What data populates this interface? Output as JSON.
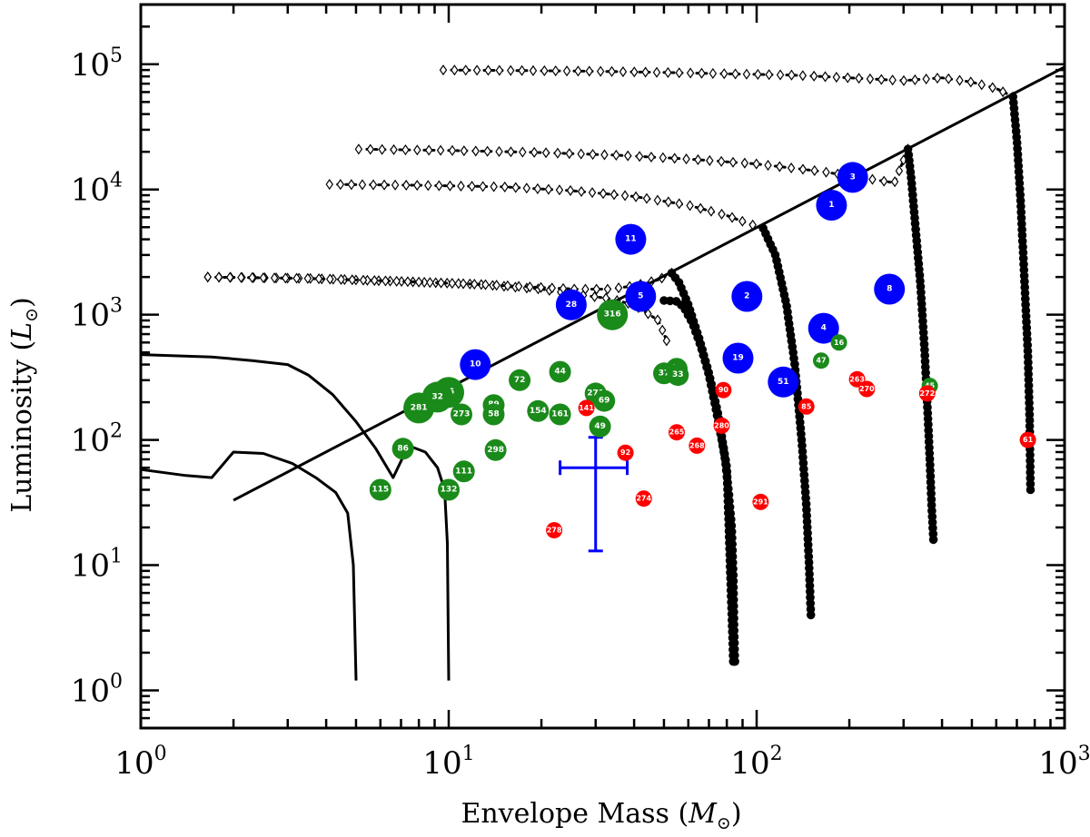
{
  "chart_data": {
    "type": "scatter",
    "title": "",
    "xlabel": "Envelope Mass",
    "xlabel_unit": "M",
    "ylabel": "Luminosity",
    "ylabel_unit": "L",
    "xscale": "log",
    "yscale": "log",
    "xlim": [
      1,
      1000
    ],
    "ylim": [
      0.5,
      300000
    ],
    "x_ticks": [
      {
        "base": "10",
        "exp": "0",
        "value": 1
      },
      {
        "base": "10",
        "exp": "1",
        "value": 10
      },
      {
        "base": "10",
        "exp": "2",
        "value": 100
      },
      {
        "base": "10",
        "exp": "3",
        "value": 1000
      }
    ],
    "y_ticks": [
      {
        "base": "10",
        "exp": "0",
        "value": 1
      },
      {
        "base": "10",
        "exp": "1",
        "value": 10
      },
      {
        "base": "10",
        "exp": "2",
        "value": 100
      },
      {
        "base": "10",
        "exp": "3",
        "value": 1000
      },
      {
        "base": "10",
        "exp": "4",
        "value": 10000
      },
      {
        "base": "10",
        "exp": "5",
        "value": 100000
      }
    ],
    "colors": {
      "blue": "#0000ff",
      "green": "#1a8a1a",
      "red": "#ff0000",
      "line": "#000000",
      "errorbar": "#0000ff"
    },
    "reference_line": {
      "x": [
        2,
        1000
      ],
      "y": [
        33,
        95000
      ]
    },
    "low_mass_tracks": [
      {
        "x": [
          1,
          1.7,
          2.3,
          3.0,
          3.5,
          4.2,
          5.0,
          5.8,
          6.6,
          7.4,
          8.4,
          9.2,
          9.7,
          9.9,
          10.0
        ],
        "y": [
          480,
          460,
          430,
          400,
          330,
          230,
          140,
          85,
          50,
          90,
          80,
          60,
          40,
          15,
          1.2
        ]
      },
      {
        "x": [
          1,
          1.4,
          1.7,
          2.0,
          2.5,
          3.1,
          3.7,
          4.3,
          4.7,
          4.9,
          5.0
        ],
        "y": [
          58,
          52,
          50,
          80,
          78,
          65,
          50,
          38,
          26,
          10,
          1.2
        ]
      }
    ],
    "main_tracks": [
      {
        "diamond": {
          "x": [
            1.65,
            3.5,
            6.8,
            12.5,
            20,
            26,
            33,
            40,
            48,
            51
          ],
          "y": [
            2000,
            1950,
            1850,
            1750,
            1600,
            1450,
            1350,
            1200,
            900,
            620
          ]
        },
        "acc": {
          "x": [
            50,
            55,
            58,
            62,
            66,
            70,
            73,
            76,
            79,
            81,
            83,
            84,
            84.5,
            85
          ],
          "y": [
            1300,
            1280,
            1150,
            850,
            550,
            330,
            200,
            120,
            70,
            40,
            20,
            8,
            3,
            1.7
          ]
        }
      },
      {
        "diamond": {
          "x": [
            1.65,
            3.5,
            6.8,
            12.5,
            20,
            26,
            33,
            40,
            48,
            53
          ],
          "y": [
            2000,
            1950,
            1850,
            1750,
            1650,
            1600,
            1600,
            1700,
            1900,
            2150
          ]
        },
        "acc": {
          "x": [
            53,
            56,
            60,
            65,
            70,
            75,
            80,
            84
          ],
          "y": [
            2150,
            1800,
            1200,
            650,
            340,
            160,
            60,
            1.7
          ]
        }
      },
      {
        "diamond": {
          "x": [
            4.1,
            8,
            15,
            25,
            40,
            60,
            80,
            95,
            105
          ],
          "y": [
            11000,
            10800,
            10500,
            9800,
            8800,
            7500,
            6200,
            5300,
            4900
          ]
        },
        "acc": {
          "x": [
            105,
            115,
            125,
            133,
            140,
            145,
            148,
            150
          ],
          "y": [
            4900,
            3000,
            1200,
            400,
            100,
            30,
            10,
            4
          ]
        }
      },
      {
        "diamond": {
          "x": [
            5.1,
            10,
            19,
            35,
            60,
            100,
            160,
            230,
            280,
            310
          ],
          "y": [
            21000,
            20500,
            19800,
            18800,
            17500,
            16000,
            14000,
            12200,
            11300,
            21000
          ]
        },
        "acc": {
          "x": [
            310,
            318,
            328,
            340,
            350,
            358,
            365,
            370,
            375
          ],
          "y": [
            21000,
            12000,
            5000,
            1800,
            600,
            200,
            70,
            30,
            16
          ]
        }
      },
      {
        "diamond": {
          "x": [
            9.6,
            18,
            30,
            50,
            80,
            130,
            200,
            300,
            400,
            500,
            600,
            680
          ],
          "y": [
            90000,
            89000,
            88000,
            86000,
            84000,
            82000,
            78000,
            74000,
            78000,
            72000,
            64000,
            55000
          ]
        },
        "acc": {
          "x": [
            680,
            700,
            720,
            740,
            760,
            770,
            775
          ],
          "y": [
            55000,
            25000,
            8000,
            2000,
            500,
            150,
            40
          ]
        }
      }
    ],
    "points": [
      {
        "label": "1",
        "x": 175,
        "y": 7500,
        "color": "blue",
        "size": "L"
      },
      {
        "label": "2",
        "x": 93,
        "y": 1400,
        "color": "blue",
        "size": "L"
      },
      {
        "label": "3",
        "x": 205,
        "y": 12500,
        "color": "blue",
        "size": "L"
      },
      {
        "label": "4",
        "x": 165,
        "y": 780,
        "color": "blue",
        "size": "L"
      },
      {
        "label": "5",
        "x": 42,
        "y": 1400,
        "color": "blue",
        "size": "L"
      },
      {
        "label": "8",
        "x": 270,
        "y": 1600,
        "color": "blue",
        "size": "L"
      },
      {
        "label": "10",
        "x": 12.2,
        "y": 400,
        "color": "blue",
        "size": "L"
      },
      {
        "label": "11",
        "x": 39,
        "y": 4000,
        "color": "blue",
        "size": "L"
      },
      {
        "label": "19",
        "x": 87,
        "y": 450,
        "color": "blue",
        "size": "L"
      },
      {
        "label": "28",
        "x": 25,
        "y": 1200,
        "color": "blue",
        "size": "L"
      },
      {
        "label": "51",
        "x": 122,
        "y": 290,
        "color": "blue",
        "size": "L"
      },
      {
        "label": "316",
        "x": 34,
        "y": 1000,
        "color": "green",
        "size": "L"
      },
      {
        "label": "15",
        "x": 10,
        "y": 240,
        "color": "green",
        "size": "L"
      },
      {
        "label": "32",
        "x": 9.2,
        "y": 220,
        "color": "green",
        "size": "L"
      },
      {
        "label": "281",
        "x": 8,
        "y": 180,
        "color": "green",
        "size": "L"
      },
      {
        "label": "273",
        "x": 11,
        "y": 160,
        "color": "green",
        "size": "M"
      },
      {
        "label": "86",
        "x": 7.1,
        "y": 85,
        "color": "green",
        "size": "M"
      },
      {
        "label": "115",
        "x": 6,
        "y": 40,
        "color": "green",
        "size": "M"
      },
      {
        "label": "111",
        "x": 11.2,
        "y": 56,
        "color": "green",
        "size": "M"
      },
      {
        "label": "132",
        "x": 10,
        "y": 40,
        "color": "green",
        "size": "M"
      },
      {
        "label": "89",
        "x": 14,
        "y": 190,
        "color": "green",
        "size": "M"
      },
      {
        "label": "58",
        "x": 14,
        "y": 160,
        "color": "green",
        "size": "M"
      },
      {
        "label": "298",
        "x": 14.2,
        "y": 83,
        "color": "green",
        "size": "M"
      },
      {
        "label": "72",
        "x": 17,
        "y": 300,
        "color": "green",
        "size": "M"
      },
      {
        "label": "154",
        "x": 19.5,
        "y": 170,
        "color": "green",
        "size": "M"
      },
      {
        "label": "44",
        "x": 23,
        "y": 350,
        "color": "green",
        "size": "M"
      },
      {
        "label": "161",
        "x": 23,
        "y": 160,
        "color": "green",
        "size": "M"
      },
      {
        "label": "271",
        "x": 30,
        "y": 235,
        "color": "green",
        "size": "M"
      },
      {
        "label": "69",
        "x": 32,
        "y": 205,
        "color": "green",
        "size": "M"
      },
      {
        "label": "49",
        "x": 31,
        "y": 128,
        "color": "green",
        "size": "M"
      },
      {
        "label": "37",
        "x": 50,
        "y": 340,
        "color": "green",
        "size": "M"
      },
      {
        "label": "42",
        "x": 55,
        "y": 370,
        "color": "green",
        "size": "M"
      },
      {
        "label": "33",
        "x": 55.5,
        "y": 330,
        "color": "green",
        "size": "M"
      },
      {
        "label": "16",
        "x": 185,
        "y": 600,
        "color": "green",
        "size": "S"
      },
      {
        "label": "47",
        "x": 162,
        "y": 430,
        "color": "green",
        "size": "S"
      },
      {
        "label": "45",
        "x": 365,
        "y": 270,
        "color": "green",
        "size": "S"
      },
      {
        "label": "141",
        "x": 28,
        "y": 180,
        "color": "red",
        "size": "S"
      },
      {
        "label": "92",
        "x": 37.5,
        "y": 79,
        "color": "red",
        "size": "S"
      },
      {
        "label": "274",
        "x": 43,
        "y": 34,
        "color": "red",
        "size": "S"
      },
      {
        "label": "278",
        "x": 22,
        "y": 19,
        "color": "red",
        "size": "S"
      },
      {
        "label": "265",
        "x": 55,
        "y": 115,
        "color": "red",
        "size": "S"
      },
      {
        "label": "268",
        "x": 64,
        "y": 90,
        "color": "red",
        "size": "S"
      },
      {
        "label": "280",
        "x": 77,
        "y": 130,
        "color": "red",
        "size": "S"
      },
      {
        "label": "90",
        "x": 78,
        "y": 250,
        "color": "red",
        "size": "S"
      },
      {
        "label": "85",
        "x": 145,
        "y": 185,
        "color": "red",
        "size": "S"
      },
      {
        "label": "291",
        "x": 103,
        "y": 32,
        "color": "red",
        "size": "S"
      },
      {
        "label": "263",
        "x": 212,
        "y": 305,
        "color": "red",
        "size": "S"
      },
      {
        "label": "270",
        "x": 228,
        "y": 255,
        "color": "red",
        "size": "S"
      },
      {
        "label": "272",
        "x": 358,
        "y": 235,
        "color": "red",
        "size": "S"
      },
      {
        "label": "61",
        "x": 760,
        "y": 100,
        "color": "red",
        "size": "S"
      }
    ],
    "error_bar": {
      "x": 30,
      "x_range": [
        23,
        38
      ],
      "y": 60,
      "y_range": [
        13,
        105
      ]
    }
  }
}
